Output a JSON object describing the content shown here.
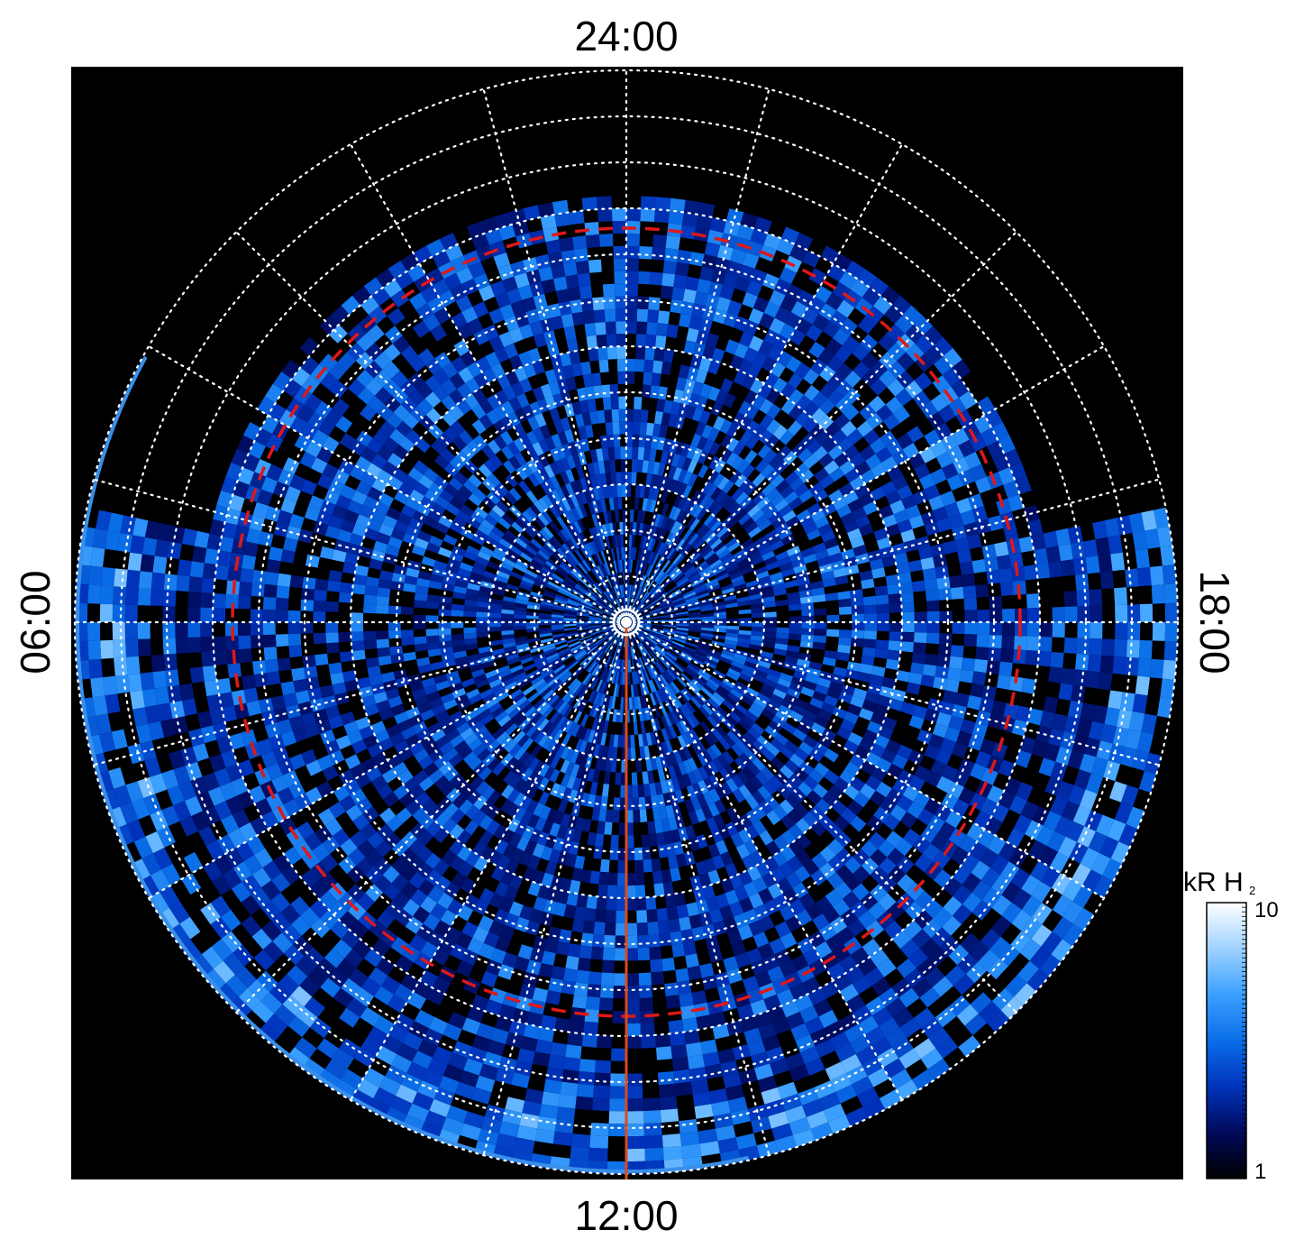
{
  "chart_data": {
    "type": "heatmap",
    "projection": "polar (local-time dial)",
    "local_time_labels": {
      "top": "24:00",
      "bottom": "12:00",
      "left": "06:00",
      "right": "18:00"
    },
    "colorbar": {
      "title_main": "kR H",
      "title_subscript": "2",
      "min_label": "1",
      "max_label": "10",
      "range": [
        1,
        10
      ],
      "scale": "log",
      "colormap": [
        "#000000",
        "#000a5a",
        "#0033bb",
        "#0a6ee8",
        "#3aa0ff",
        "#9fd2ff",
        "#ffffff"
      ]
    },
    "grid": {
      "style": "white dotted",
      "meridian_count": 24,
      "parallel_count": 12
    },
    "reference_circle": {
      "color": "#e01818",
      "style": "dashed"
    },
    "reference_line": {
      "color": "#d94a1a",
      "direction": "from pole toward 12:00"
    },
    "background_color": "#000000"
  }
}
